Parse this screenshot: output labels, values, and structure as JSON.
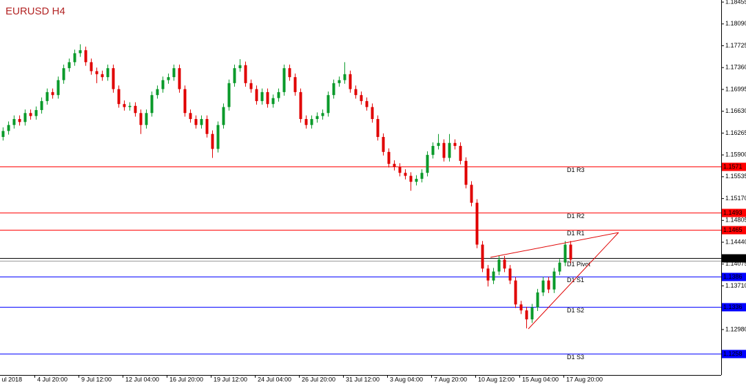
{
  "chart_data": {
    "type": "candlestick",
    "title": "EURUSD H4",
    "up_color": "#0a9a2a",
    "down_color": "#e00000",
    "ylim": [
      1.1849,
      1.1222
    ],
    "yticks": [
      1.18455,
      {
        "value": 1.1809,
        "label": "1.18090"
      },
      1.17725,
      {
        "value": 1.1736,
        "label": "1.17360"
      },
      1.16995,
      {
        "value": 1.1663,
        "label": "1.16630"
      },
      1.16265,
      {
        "value": 1.159,
        "label": "1.15900"
      },
      1.15535,
      {
        "value": 1.1517,
        "label": "1.15170"
      },
      1.14805,
      {
        "value": 1.1444,
        "label": "1.14440"
      },
      1.14075,
      {
        "value": 1.1371,
        "label": "1.13710"
      },
      {
        "value": 1.1298,
        "label": "1.12980"
      }
    ],
    "categories": [
      "ul 2018",
      "4 Jul 20:00",
      "9 Jul 12:00",
      "12 Jul 04:00",
      "16 Jul 20:00",
      "19 Jul 12:00",
      "24 Jul 04:00",
      "26 Jul 20:00",
      "31 Jul 12:00",
      "3 Aug 04:00",
      "7 Aug 20:00",
      "10 Aug 12:00",
      "15 Aug 04:00",
      "17 Aug 20:00"
    ],
    "levels": [
      {
        "name": "D1 R3",
        "value": 1.1571,
        "color": "#ff0000",
        "price_box": true
      },
      {
        "name": "D1 R2",
        "value": 1.1493,
        "color": "#ff0000",
        "price_box": true
      },
      {
        "name": "D1 R1",
        "value": 1.1465,
        "color": "#ff0000",
        "price_box": true
      },
      {
        "name": "D1 Pivot",
        "value": 1.1413,
        "color": "#999999",
        "price_box": false
      },
      {
        "name": "D1 S1",
        "value": 1.1386,
        "color": "#0000ff",
        "price_box": true
      },
      {
        "name": "D1 S2",
        "value": 1.1336,
        "color": "#0000ff",
        "price_box": true
      },
      {
        "name": "D1 S3",
        "value": 1.1258,
        "color": "#0000ff",
        "price_box": true
      }
    ],
    "current_price": 1.1415,
    "candles": [
      [
        1.162,
        1.1636,
        1.1614,
        1.163
      ],
      [
        1.163,
        1.1646,
        1.1624,
        1.164
      ],
      [
        1.164,
        1.1656,
        1.1634,
        1.165
      ],
      [
        1.165,
        1.1656,
        1.1639,
        1.1645
      ],
      [
        1.1645,
        1.1666,
        1.1639,
        1.166
      ],
      [
        1.166,
        1.1666,
        1.1649,
        1.1655
      ],
      [
        1.1655,
        1.1671,
        1.1649,
        1.1665
      ],
      [
        1.1665,
        1.1686,
        1.1659,
        1.168
      ],
      [
        1.168,
        1.1701,
        1.1674,
        1.1695
      ],
      [
        1.1695,
        1.1701,
        1.1684,
        1.169
      ],
      [
        1.169,
        1.1721,
        1.1684,
        1.1715
      ],
      [
        1.1715,
        1.1741,
        1.1709,
        1.1735
      ],
      [
        1.1735,
        1.1751,
        1.1729,
        1.1745
      ],
      [
        1.1745,
        1.1766,
        1.1739,
        1.176
      ],
      [
        1.176,
        1.1775,
        1.1754,
        1.1765
      ],
      [
        1.1765,
        1.1771,
        1.1739,
        1.1745
      ],
      [
        1.1745,
        1.1751,
        1.1724,
        1.173
      ],
      [
        1.173,
        1.1736,
        1.171,
        1.1725
      ],
      [
        1.1725,
        1.1731,
        1.1714,
        1.172
      ],
      [
        1.172,
        1.1741,
        1.1714,
        1.1735
      ],
      [
        1.1735,
        1.1741,
        1.1694,
        1.17
      ],
      [
        1.17,
        1.1706,
        1.1669,
        1.1675
      ],
      [
        1.1675,
        1.1681,
        1.1664,
        1.167
      ],
      [
        1.167,
        1.1678,
        1.1664,
        1.1672
      ],
      [
        1.1672,
        1.1678,
        1.1654,
        1.166
      ],
      [
        1.166,
        1.1666,
        1.1625,
        1.164
      ],
      [
        1.164,
        1.1666,
        1.1634,
        1.166
      ],
      [
        1.166,
        1.1696,
        1.1654,
        1.169
      ],
      [
        1.169,
        1.1706,
        1.1684,
        1.17
      ],
      [
        1.17,
        1.1721,
        1.1694,
        1.1715
      ],
      [
        1.1715,
        1.1726,
        1.1709,
        1.172
      ],
      [
        1.172,
        1.1741,
        1.1714,
        1.1735
      ],
      [
        1.1735,
        1.1741,
        1.1694,
        1.17
      ],
      [
        1.17,
        1.1706,
        1.1654,
        1.166
      ],
      [
        1.166,
        1.1666,
        1.1644,
        1.165
      ],
      [
        1.165,
        1.1656,
        1.1634,
        1.164
      ],
      [
        1.164,
        1.1656,
        1.1634,
        1.165
      ],
      [
        1.165,
        1.1656,
        1.1619,
        1.1625
      ],
      [
        1.1625,
        1.1631,
        1.1585,
        1.16
      ],
      [
        1.16,
        1.1646,
        1.1594,
        1.164
      ],
      [
        1.164,
        1.1676,
        1.1634,
        1.167
      ],
      [
        1.167,
        1.1716,
        1.1664,
        1.171
      ],
      [
        1.171,
        1.1741,
        1.1704,
        1.1735
      ],
      [
        1.1735,
        1.175,
        1.1729,
        1.174
      ],
      [
        1.174,
        1.1746,
        1.1704,
        1.171
      ],
      [
        1.171,
        1.1716,
        1.1694,
        1.17
      ],
      [
        1.17,
        1.1706,
        1.1674,
        1.168
      ],
      [
        1.168,
        1.1701,
        1.1674,
        1.1695
      ],
      [
        1.1695,
        1.1701,
        1.1669,
        1.1675
      ],
      [
        1.1675,
        1.1691,
        1.1669,
        1.1685
      ],
      [
        1.1685,
        1.1701,
        1.1679,
        1.1695
      ],
      [
        1.1695,
        1.1741,
        1.1689,
        1.1735
      ],
      [
        1.1735,
        1.1741,
        1.1714,
        1.172
      ],
      [
        1.172,
        1.1726,
        1.1689,
        1.1695
      ],
      [
        1.1695,
        1.1701,
        1.1644,
        1.165
      ],
      [
        1.165,
        1.1656,
        1.1634,
        1.164
      ],
      [
        1.164,
        1.1656,
        1.1634,
        1.165
      ],
      [
        1.165,
        1.1661,
        1.1644,
        1.1655
      ],
      [
        1.1655,
        1.1666,
        1.1649,
        1.166
      ],
      [
        1.166,
        1.1696,
        1.1654,
        1.169
      ],
      [
        1.169,
        1.1716,
        1.1684,
        1.171
      ],
      [
        1.171,
        1.1721,
        1.1704,
        1.1715
      ],
      [
        1.1715,
        1.1745,
        1.1709,
        1.1725
      ],
      [
        1.1725,
        1.1731,
        1.1694,
        1.17
      ],
      [
        1.17,
        1.1706,
        1.1684,
        1.169
      ],
      [
        1.169,
        1.1696,
        1.1674,
        1.168
      ],
      [
        1.168,
        1.1686,
        1.1664,
        1.167
      ],
      [
        1.167,
        1.1676,
        1.1644,
        1.165
      ],
      [
        1.165,
        1.1656,
        1.1614,
        1.162
      ],
      [
        1.162,
        1.1626,
        1.1589,
        1.1595
      ],
      [
        1.1595,
        1.1601,
        1.1569,
        1.1575
      ],
      [
        1.1575,
        1.1581,
        1.1564,
        1.157
      ],
      [
        1.157,
        1.1576,
        1.1554,
        1.156
      ],
      [
        1.156,
        1.1566,
        1.1549,
        1.1555
      ],
      [
        1.1555,
        1.1561,
        1.153,
        1.1545
      ],
      [
        1.1545,
        1.1556,
        1.1539,
        1.155
      ],
      [
        1.155,
        1.1566,
        1.1544,
        1.156
      ],
      [
        1.156,
        1.1596,
        1.1554,
        1.159
      ],
      [
        1.159,
        1.1611,
        1.1584,
        1.1605
      ],
      [
        1.1605,
        1.1625,
        1.1599,
        1.161
      ],
      [
        1.161,
        1.1616,
        1.1579,
        1.1585
      ],
      [
        1.1585,
        1.1625,
        1.1579,
        1.161
      ],
      [
        1.161,
        1.1616,
        1.1599,
        1.1605
      ],
      [
        1.1605,
        1.1611,
        1.1574,
        1.158
      ],
      [
        1.158,
        1.1586,
        1.1534,
        1.154
      ],
      [
        1.154,
        1.1546,
        1.1504,
        1.151
      ],
      [
        1.151,
        1.1516,
        1.1434,
        1.144
      ],
      [
        1.144,
        1.1446,
        1.1394,
        1.14
      ],
      [
        1.14,
        1.1406,
        1.137,
        1.138
      ],
      [
        1.138,
        1.1401,
        1.1374,
        1.1395
      ],
      [
        1.1395,
        1.1421,
        1.1389,
        1.1415
      ],
      [
        1.1415,
        1.1421,
        1.1394,
        1.14
      ],
      [
        1.14,
        1.1406,
        1.1374,
        1.138
      ],
      [
        1.138,
        1.1386,
        1.1334,
        1.134
      ],
      [
        1.134,
        1.1346,
        1.1324,
        1.133
      ],
      [
        1.133,
        1.1336,
        1.13,
        1.1315
      ],
      [
        1.1315,
        1.1341,
        1.1309,
        1.1335
      ],
      [
        1.1335,
        1.1366,
        1.1329,
        1.136
      ],
      [
        1.136,
        1.1386,
        1.1354,
        1.138
      ],
      [
        1.138,
        1.1386,
        1.1359,
        1.1365
      ],
      [
        1.1365,
        1.1401,
        1.1359,
        1.1395
      ],
      [
        1.1395,
        1.1416,
        1.1389,
        1.141
      ],
      [
        1.141,
        1.1446,
        1.1404,
        1.144
      ],
      [
        1.144,
        1.1446,
        1.1409,
        1.1415
      ]
    ]
  }
}
